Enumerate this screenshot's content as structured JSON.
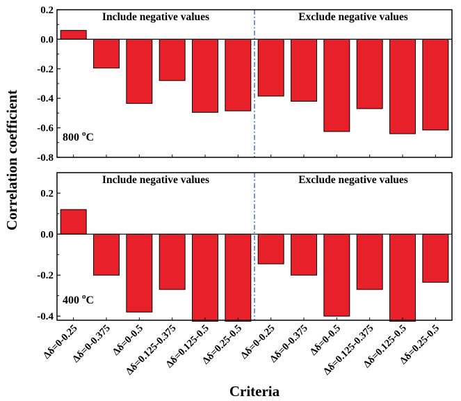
{
  "chart_data": {
    "type": "bar",
    "ylabel": "Correlation coefficient",
    "xlabel": "Criteria",
    "categories": [
      "Δδ=0-0.25",
      "Δδ=0-0.375",
      "Δδ=0-0.5",
      "Δδ=0.125-0.375",
      "Δδ=0.125-0.5",
      "Δδ=0.25-0.5",
      "Δδ=0-0.25",
      "Δδ=0-0.375",
      "Δδ=0-0.5",
      "Δδ=0.125-0.375",
      "Δδ=0.125-0.5",
      "Δδ=0.25-0.5"
    ],
    "bar_color": "#e8202a",
    "divider_color": "#3a5db0",
    "panels": [
      {
        "id": "top",
        "temperature_label": "800 °C",
        "temperature_value": "800 ",
        "temperature_sup": "o",
        "temperature_unit": "C",
        "ylim": [
          -0.8,
          0.2
        ],
        "yticks": [
          0.2,
          0.0,
          -0.2,
          -0.4,
          -0.6,
          -0.8
        ],
        "ytick_labels": [
          "0.2",
          "0.0",
          "-0.2",
          "-0.4",
          "-0.6",
          "-0.8"
        ],
        "left_group_label": "Include negative values",
        "right_group_label": "Exclude negative values",
        "values": [
          0.06,
          -0.195,
          -0.435,
          -0.28,
          -0.495,
          -0.485,
          -0.385,
          -0.42,
          -0.625,
          -0.47,
          -0.64,
          -0.615
        ]
      },
      {
        "id": "bottom",
        "temperature_label": "400 °C",
        "temperature_value": "400 ",
        "temperature_sup": "o",
        "temperature_unit": "C",
        "ylim": [
          -0.42,
          0.3
        ],
        "yticks": [
          0.2,
          0.0,
          -0.2,
          -0.4
        ],
        "ytick_labels": [
          "0.2",
          "0.0",
          "-0.2",
          "-0.4"
        ],
        "left_group_label": "Include negative values",
        "right_group_label": "Exclude negative values",
        "values": [
          0.12,
          -0.2,
          -0.38,
          -0.27,
          -0.425,
          -0.425,
          -0.145,
          -0.2,
          -0.4,
          -0.27,
          -0.425,
          -0.235
        ]
      }
    ]
  }
}
